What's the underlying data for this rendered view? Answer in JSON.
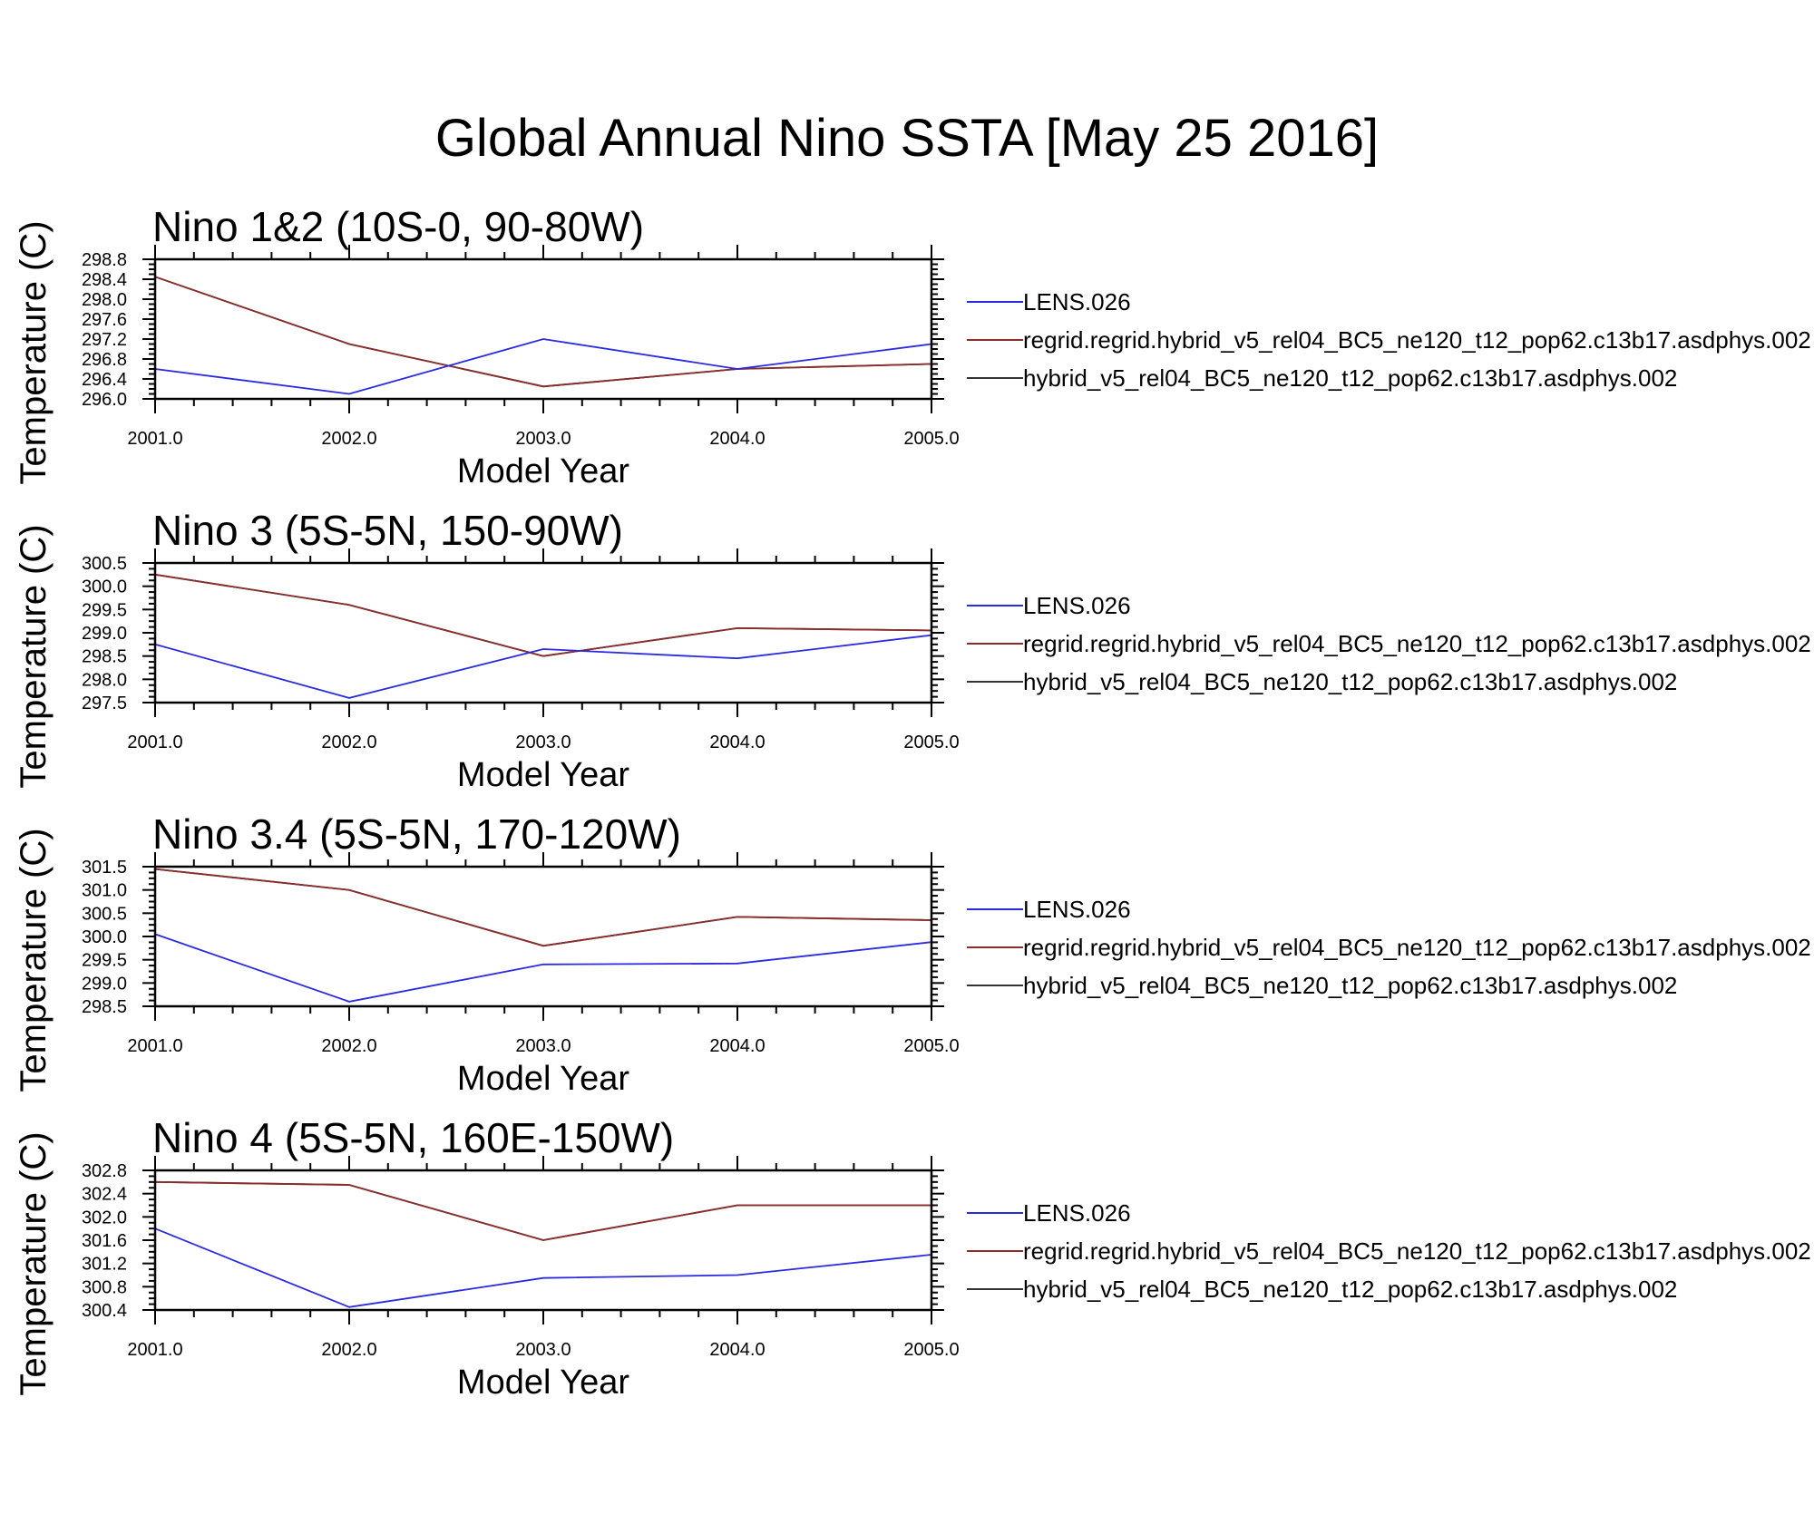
{
  "title": "Global Annual Nino SSTA [May 25 2016]",
  "colors": {
    "LENS": "#2a2adf",
    "regrid": "#8b2d2d",
    "hybrid": "#333333"
  },
  "chart_data": [
    {
      "type": "line",
      "title": "Nino 1&2 (10S-0, 90-80W)",
      "xlabel": "Model Year",
      "ylabel": "Temperature (C)",
      "x": [
        2001,
        2002,
        2003,
        2004,
        2005
      ],
      "x_tick_labels": [
        "2001.0",
        "2002.0",
        "2003.0",
        "2004.0",
        "2005.0"
      ],
      "ylim": [
        296.0,
        298.8
      ],
      "y_tick_labels": [
        "296.0",
        "296.4",
        "296.8",
        "297.2",
        "297.6",
        "298.0",
        "298.4",
        "298.8"
      ],
      "series": [
        {
          "name": "LENS.026",
          "color": "#2a2adf",
          "values": [
            296.6,
            296.1,
            297.2,
            296.6,
            297.1
          ]
        },
        {
          "name": "regrid.regrid.hybrid_v5_rel04_BC5_ne120_t12_pop62.c13b17.asdphys.002",
          "color": "#8b2d2d",
          "values": [
            298.45,
            297.1,
            296.25,
            296.6,
            296.7
          ]
        },
        {
          "name": "hybrid_v5_rel04_BC5_ne120_t12_pop62.c13b17.asdphys.002",
          "color": "#333333",
          "values": [
            298.45,
            297.1,
            296.25,
            296.6,
            296.7
          ]
        }
      ]
    },
    {
      "type": "line",
      "title": "Nino 3 (5S-5N, 150-90W)",
      "xlabel": "Model Year",
      "ylabel": "Temperature (C)",
      "x": [
        2001,
        2002,
        2003,
        2004,
        2005
      ],
      "x_tick_labels": [
        "2001.0",
        "2002.0",
        "2003.0",
        "2004.0",
        "2005.0"
      ],
      "ylim": [
        297.5,
        300.5
      ],
      "y_tick_labels": [
        "297.5",
        "298.0",
        "298.5",
        "299.0",
        "299.5",
        "300.0",
        "300.5"
      ],
      "series": [
        {
          "name": "LENS.026",
          "color": "#2a2adf",
          "values": [
            298.75,
            297.6,
            298.65,
            298.45,
            298.95
          ]
        },
        {
          "name": "regrid.regrid.hybrid_v5_rel04_BC5_ne120_t12_pop62.c13b17.asdphys.002",
          "color": "#8b2d2d",
          "values": [
            300.25,
            299.6,
            298.5,
            299.1,
            299.05
          ]
        },
        {
          "name": "hybrid_v5_rel04_BC5_ne120_t12_pop62.c13b17.asdphys.002",
          "color": "#333333",
          "values": [
            300.25,
            299.6,
            298.5,
            299.1,
            299.05
          ]
        }
      ]
    },
    {
      "type": "line",
      "title": "Nino 3.4 (5S-5N, 170-120W)",
      "xlabel": "Model Year",
      "ylabel": "Temperature (C)",
      "x": [
        2001,
        2002,
        2003,
        2004,
        2005
      ],
      "x_tick_labels": [
        "2001.0",
        "2002.0",
        "2003.0",
        "2004.0",
        "2005.0"
      ],
      "ylim": [
        298.5,
        301.5
      ],
      "y_tick_labels": [
        "298.5",
        "299.0",
        "299.5",
        "300.0",
        "300.5",
        "301.0",
        "301.5"
      ],
      "series": [
        {
          "name": "LENS.026",
          "color": "#2a2adf",
          "values": [
            300.05,
            298.6,
            299.4,
            299.42,
            299.88
          ]
        },
        {
          "name": "regrid.regrid.hybrid_v5_rel04_BC5_ne120_t12_pop62.c13b17.asdphys.002",
          "color": "#8b2d2d",
          "values": [
            301.45,
            301.0,
            299.8,
            300.42,
            300.35
          ]
        },
        {
          "name": "hybrid_v5_rel04_BC5_ne120_t12_pop62.c13b17.asdphys.002",
          "color": "#333333",
          "values": [
            301.45,
            301.0,
            299.8,
            300.42,
            300.35
          ]
        }
      ]
    },
    {
      "type": "line",
      "title": "Nino 4 (5S-5N, 160E-150W)",
      "xlabel": "Model Year",
      "ylabel": "Temperature (C)",
      "x": [
        2001,
        2002,
        2003,
        2004,
        2005
      ],
      "x_tick_labels": [
        "2001.0",
        "2002.0",
        "2003.0",
        "2004.0",
        "2005.0"
      ],
      "ylim": [
        300.4,
        302.8
      ],
      "y_tick_labels": [
        "300.4",
        "300.8",
        "301.2",
        "301.6",
        "302.0",
        "302.4",
        "302.8"
      ],
      "series": [
        {
          "name": "LENS.026",
          "color": "#2a2adf",
          "values": [
            301.8,
            300.45,
            300.95,
            301.0,
            301.35
          ]
        },
        {
          "name": "regrid.regrid.hybrid_v5_rel04_BC5_ne120_t12_pop62.c13b17.asdphys.002",
          "color": "#8b2d2d",
          "values": [
            302.6,
            302.55,
            301.6,
            302.2,
            302.2
          ]
        },
        {
          "name": "hybrid_v5_rel04_BC5_ne120_t12_pop62.c13b17.asdphys.002",
          "color": "#333333",
          "values": [
            302.6,
            302.55,
            301.6,
            302.2,
            302.2
          ]
        }
      ]
    }
  ]
}
